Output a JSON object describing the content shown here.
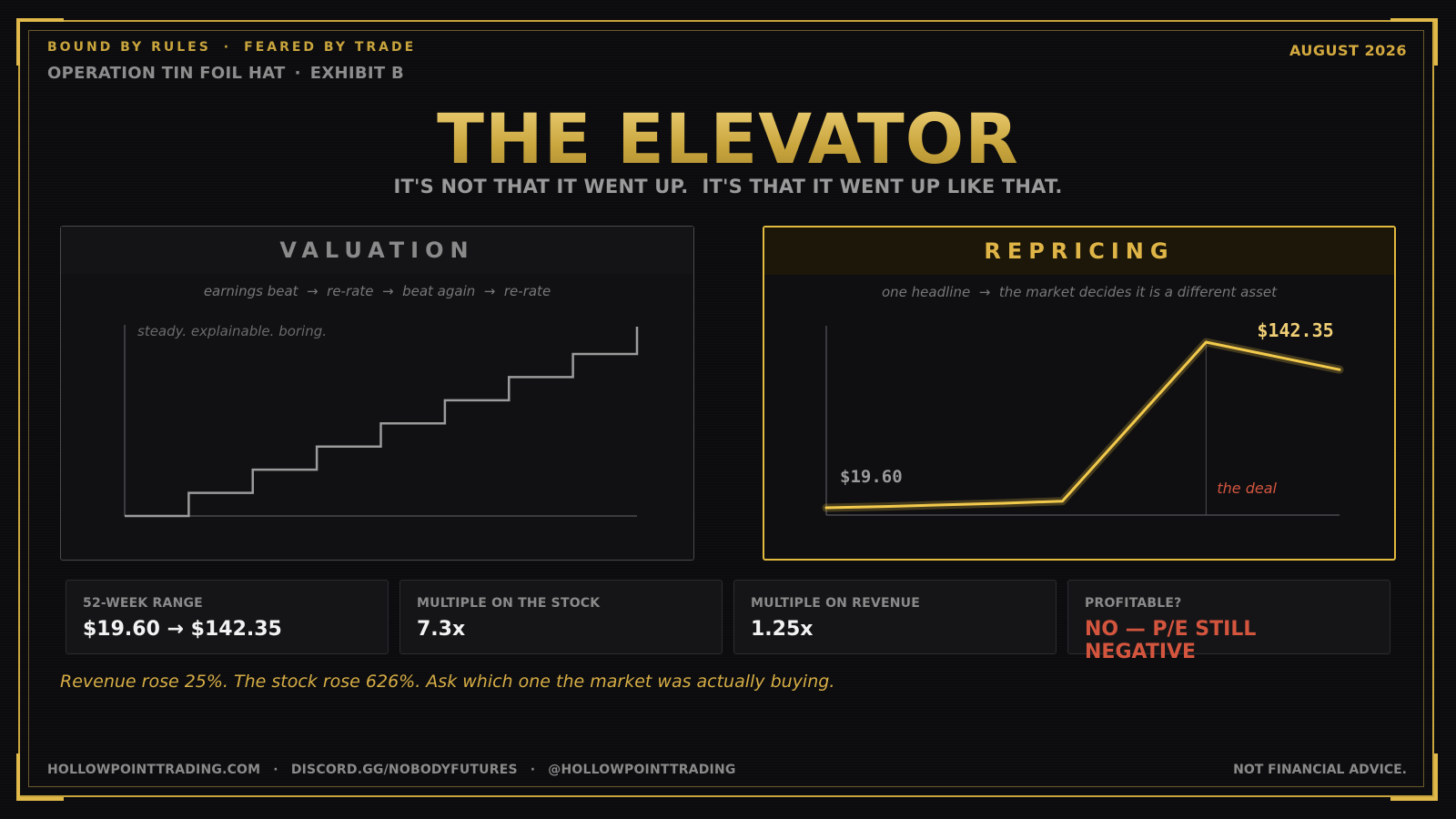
{
  "header": {
    "kicker_left": "BOUND BY RULES",
    "kicker_right": "FEARED BY TRADE",
    "operation": "OPERATION TIN FOIL HAT",
    "exhibit": "EXHIBIT B",
    "date": "AUGUST 2026",
    "separator": "·"
  },
  "title": "THE ELEVATOR",
  "subtitle": "IT'S NOT THAT IT WENT UP.  IT'S THAT IT WENT UP LIKE THAT.",
  "colors": {
    "gold": "#e2ba3f",
    "grey_line": "#9b9b9b",
    "red": "#d4553e",
    "background": "#0c0c0e"
  },
  "chart_data": [
    {
      "type": "line",
      "title": "VALUATION",
      "subtitle": "earnings beat  →  re-rate  →  beat again  →  re-rate",
      "annotation": "steady. explainable. boring.",
      "shape": "step",
      "series": [
        {
          "values": [
            0,
            1,
            2,
            3,
            4,
            5,
            6,
            7
          ]
        }
      ],
      "grid": false
    },
    {
      "type": "line",
      "title": "REPRICING",
      "subtitle": "one headline  →  the market decides it is a different asset",
      "start_label": "$19.60",
      "peak_label": "$142.35",
      "event_label": "the deal",
      "series": [
        {
          "values": [
            19.6,
            20.5,
            21.8,
            23.0,
            24.5,
            142.35,
            122.0
          ]
        }
      ],
      "event_index": 5,
      "grid": false
    }
  ],
  "stats": [
    {
      "label": "52-WEEK RANGE",
      "value": "$19.60 → $142.35"
    },
    {
      "label": "MULTIPLE ON THE STOCK",
      "value": "7.3x"
    },
    {
      "label": "MULTIPLE ON REVENUE",
      "value": "1.25x"
    },
    {
      "label": "PROFITABLE?",
      "value": "NO — P/E STILL NEGATIVE"
    }
  ],
  "quote": "Revenue rose 25%. The stock rose 626%. Ask which one the market was actually buying.",
  "footer": {
    "site": "HOLLOWPOINTTRADING.COM",
    "discord": "DISCORD.GG/NOBODYFUTURES",
    "handle": "@HOLLOWPOINTTRADING",
    "disclaimer": "NOT FINANCIAL ADVICE."
  }
}
